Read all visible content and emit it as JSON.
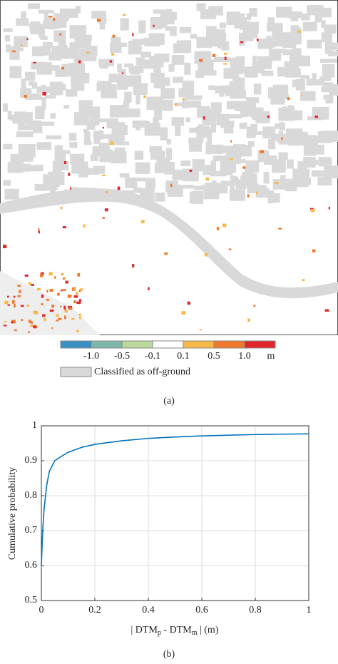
{
  "panel_a": {
    "caption": "(a)",
    "legend": {
      "colors": [
        "#3a8fc4",
        "#7fb8a8",
        "#b9d89a",
        "#ffffff",
        "#f7b84a",
        "#f0782a",
        "#e0262a"
      ],
      "labels": [
        "-1.0",
        "-0.5",
        "-0.1",
        "0.1",
        "0.5",
        "1.0"
      ],
      "unit": "m",
      "off_ground_label": "Classified as off-ground",
      "off_ground_color": "#d9d9d9"
    }
  },
  "panel_b": {
    "caption": "(b)"
  },
  "chart_data": {
    "type": "line",
    "xlabel": [
      "| DTM",
      "p",
      " - DTM",
      "m",
      " | (m)"
    ],
    "ylabel": "Cumulative probability",
    "x": [
      0,
      0.005,
      0.01,
      0.02,
      0.03,
      0.05,
      0.08,
      0.1,
      0.15,
      0.2,
      0.3,
      0.4,
      0.5,
      0.6,
      0.7,
      0.8,
      0.9,
      1.0
    ],
    "values": [
      0.6,
      0.7,
      0.76,
      0.83,
      0.87,
      0.9,
      0.915,
      0.924,
      0.938,
      0.947,
      0.957,
      0.964,
      0.968,
      0.971,
      0.973,
      0.975,
      0.976,
      0.977
    ],
    "color": "#0072bd",
    "xlim": [
      0,
      1
    ],
    "ylim": [
      0.5,
      1
    ],
    "xticks": [
      0,
      0.2,
      0.4,
      0.6,
      0.8,
      1
    ],
    "yticks": [
      0.5,
      0.6,
      0.7,
      0.8,
      0.9,
      1
    ],
    "grid": true
  }
}
